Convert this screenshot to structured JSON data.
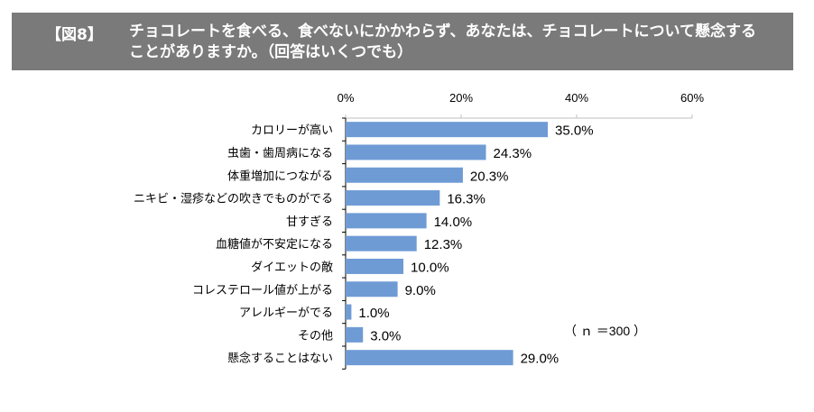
{
  "header": {
    "figure_label": "【図8】",
    "title": "チョコレートを食べる、食べないにかかわらず、あなたは、チョコレートについて懸念することがありますか。（回答はいくつでも）"
  },
  "note": "（ ｎ ＝300 ）",
  "colors": {
    "bar": "#6f9bd5",
    "title_bg": "#7a7a7a"
  },
  "chart_data": {
    "type": "bar",
    "orientation": "horizontal",
    "categories": [
      "カロリーが高い",
      "虫歯・歯周病になる",
      "体重増加につながる",
      "ニキビ・湿疹などの吹きでものがでる",
      "甘すぎる",
      "血糖値が不安定になる",
      "ダイエットの敵",
      "コレステロール値が上がる",
      "アレルギーがでる",
      "その他",
      "懸念することはない"
    ],
    "values": [
      35.0,
      24.3,
      20.3,
      16.3,
      14.0,
      12.3,
      10.0,
      9.0,
      1.0,
      3.0,
      29.0
    ],
    "value_labels": [
      "35.0%",
      "24.3%",
      "20.3%",
      "16.3%",
      "14.0%",
      "12.3%",
      "10.0%",
      "9.0%",
      "1.0%",
      "3.0%",
      "29.0%"
    ],
    "xlim": [
      0,
      60
    ],
    "ticks": [
      0,
      20,
      40,
      60
    ],
    "tick_labels": [
      "0%",
      "20%",
      "40%",
      "60%"
    ],
    "tick_position": "top",
    "grid": false
  }
}
